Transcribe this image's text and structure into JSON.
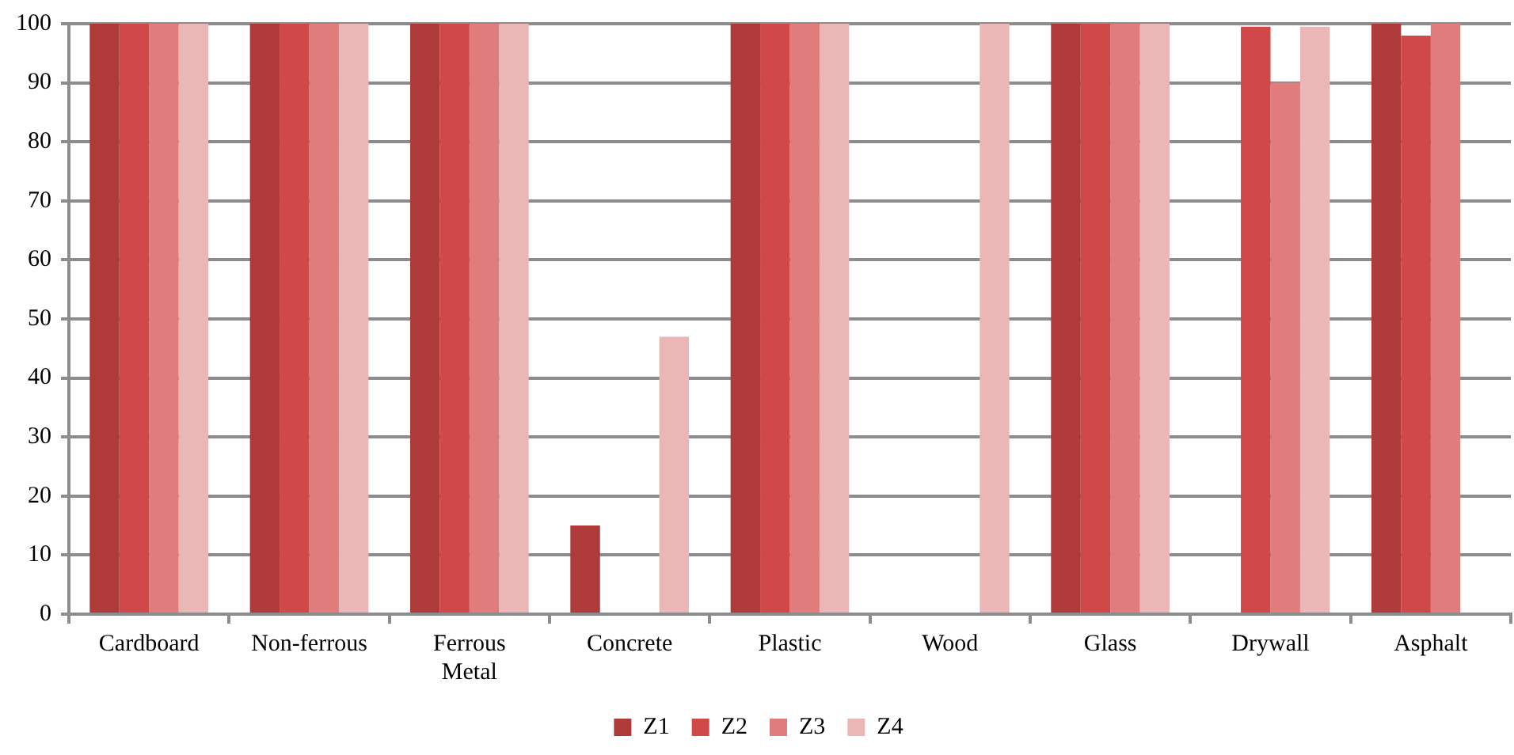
{
  "chart_data": {
    "type": "bar",
    "categories": [
      "Cardboard",
      "Non-ferrous",
      "Ferrous Metal",
      "Concrete",
      "Plastic",
      "Wood",
      "Glass",
      "Drywall",
      "Asphalt"
    ],
    "series": [
      {
        "name": "Z1",
        "color": "#ae3a3a",
        "values": [
          100,
          100,
          100,
          15,
          100,
          0,
          100,
          0,
          100
        ]
      },
      {
        "name": "Z2",
        "color": "#d04848",
        "values": [
          100,
          100,
          100,
          0,
          100,
          0,
          100,
          99.5,
          98
        ]
      },
      {
        "name": "Z3",
        "color": "#e07c7c",
        "values": [
          100,
          100,
          100,
          0,
          100,
          0,
          100,
          90,
          100
        ]
      },
      {
        "name": "Z4",
        "color": "#ebb6b6",
        "values": [
          100,
          100,
          100,
          47,
          100,
          100,
          100,
          99.5,
          0
        ]
      }
    ],
    "ylim": [
      0,
      100
    ],
    "yticks": [
      0,
      10,
      20,
      30,
      40,
      50,
      60,
      70,
      80,
      90,
      100
    ],
    "grid": "y",
    "legend": "bottom"
  }
}
